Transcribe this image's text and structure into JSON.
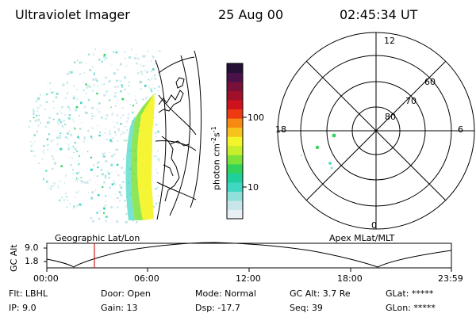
{
  "header": {
    "instrument": "Ultraviolet Imager",
    "date": "25 Aug 00",
    "time": "02:45:34 UT"
  },
  "left_panel": {
    "caption": "Geographic Lat/Lon"
  },
  "right_panel": {
    "caption": "Apex MLat/MLT",
    "mlt_labels": [
      "12",
      "18",
      "6",
      "0"
    ],
    "lat_labels": [
      "60",
      "70",
      "80"
    ]
  },
  "colorbar": {
    "unit_label": "photon cm",
    "unit_sup1": "-2",
    "unit_mid": "s",
    "unit_sup2": "-1",
    "ticks": [
      "100",
      "10"
    ],
    "colors": [
      "#e8f0f4",
      "#c8e6ea",
      "#8ee0d8",
      "#3fd6c2",
      "#1fd09a",
      "#31d35a",
      "#7be23a",
      "#c6ee2b",
      "#f4f42a",
      "#f8c21c",
      "#f78a12",
      "#ee3a13",
      "#d0121e",
      "#a0102a",
      "#78103a",
      "#4a1248",
      "#251036"
    ]
  },
  "orbit_plot": {
    "ylabel": "GC Alt",
    "y_ticks": [
      "9.0",
      "1.8"
    ],
    "x_ticks": [
      "00:00",
      "06:00",
      "12:00",
      "18:00",
      "23:59"
    ]
  },
  "info": {
    "flt": "Flt: LBHL",
    "ip": "IP:  9.0",
    "door": "Door: Open",
    "gain": "Gain: 13",
    "mode": "Mode: Normal",
    "dsp": "Dsp:  -17.7",
    "gcalt": "GC Alt: 3.7 Re",
    "seq": "Seq: 39",
    "glat": "GLat: *****",
    "glon": "GLon: *****"
  }
}
